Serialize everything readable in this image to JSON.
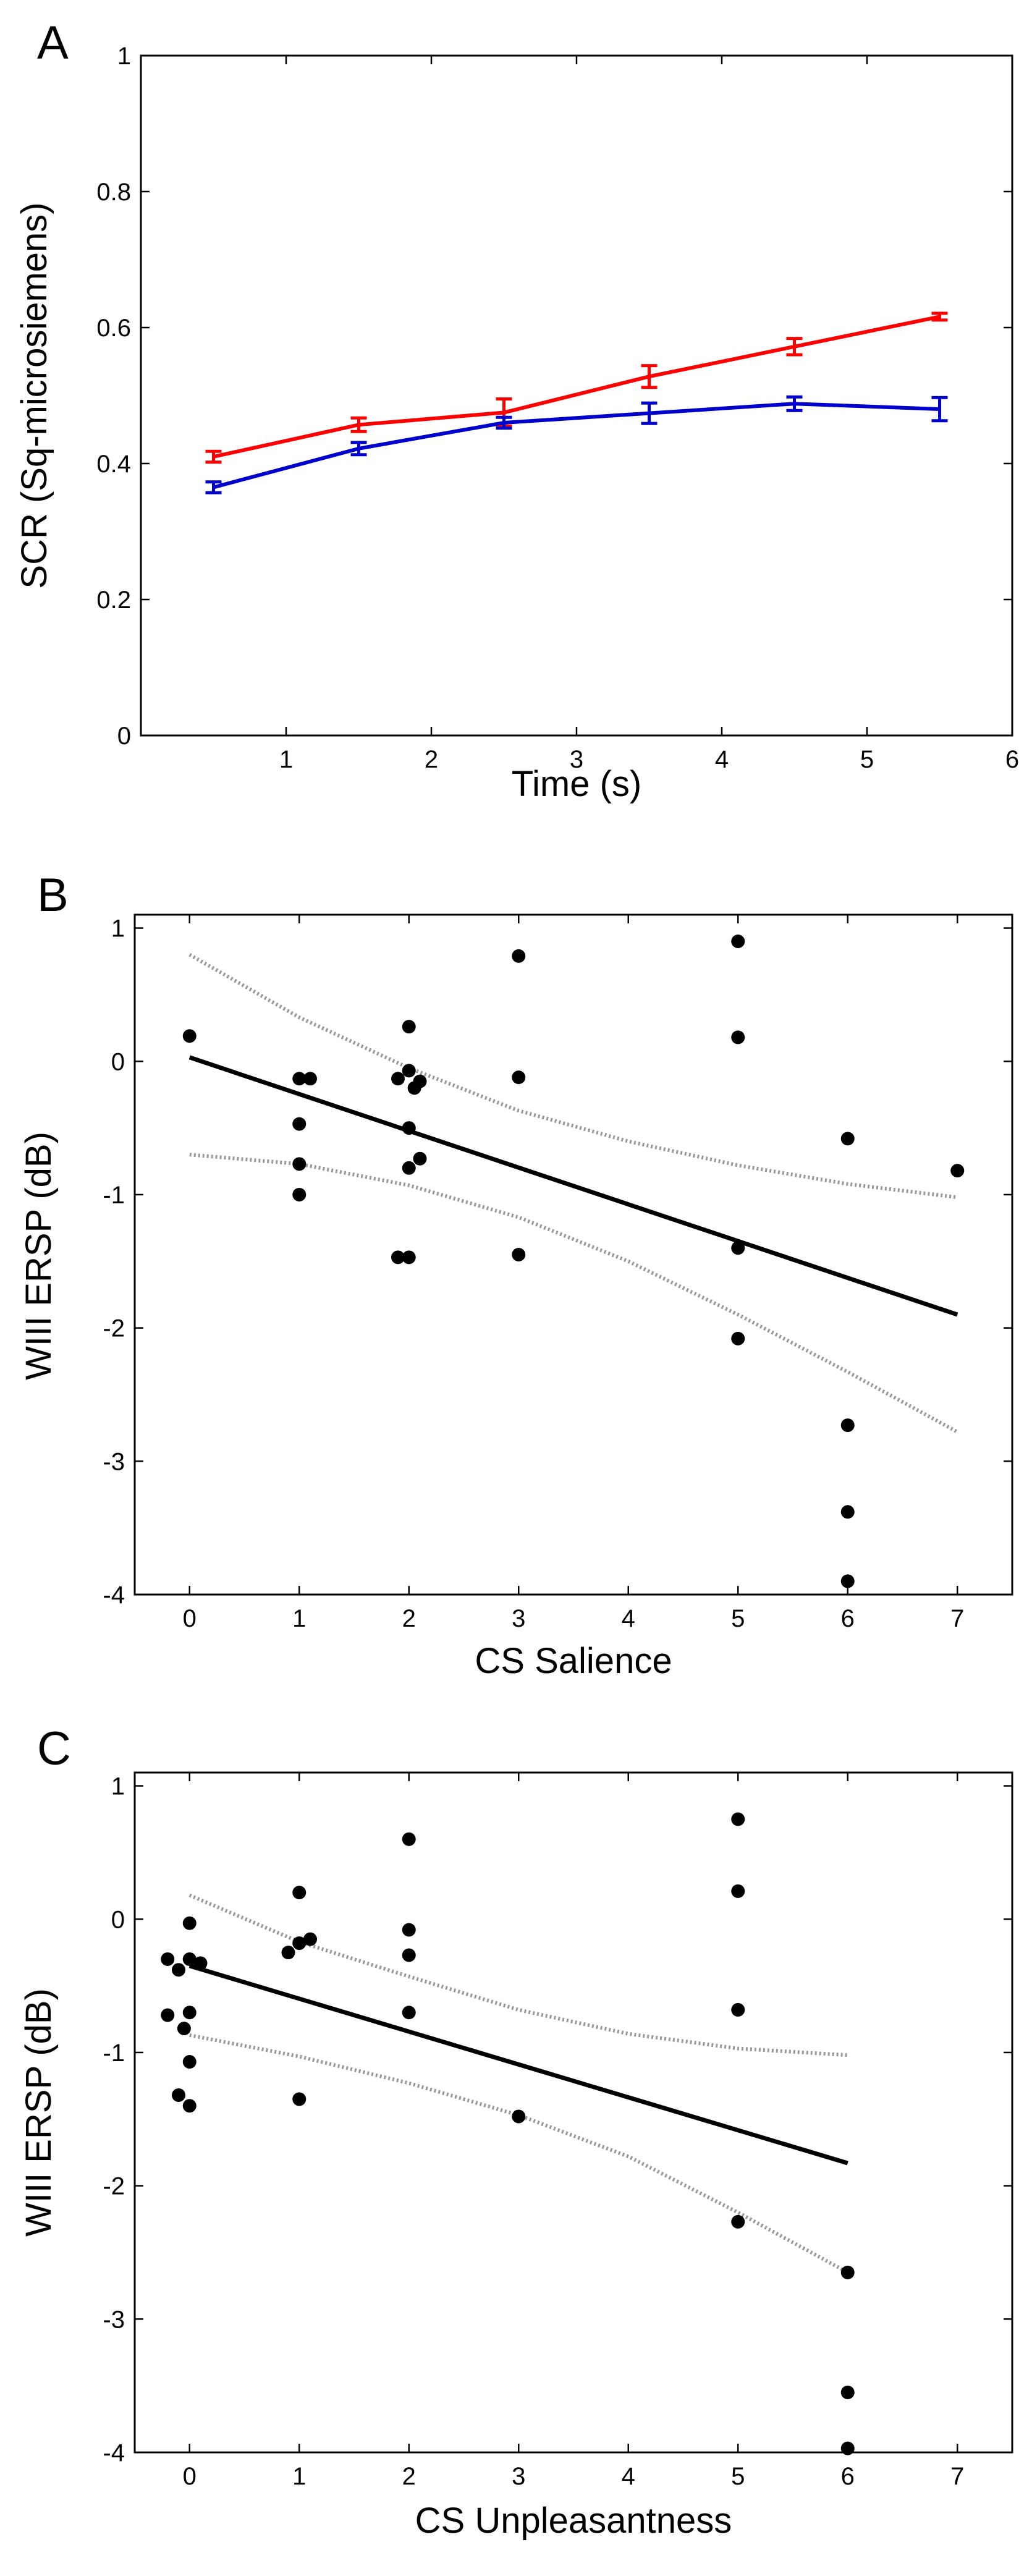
{
  "chart_data": [
    {
      "panel": "A",
      "type": "line",
      "xlabel": "Time (s)",
      "ylabel": "SCR (Sq-microsiemens)",
      "xlim": [
        0,
        6
      ],
      "ylim": [
        0,
        1
      ],
      "xticks": [
        1,
        2,
        3,
        4,
        5,
        6
      ],
      "yticks": [
        0,
        0.2,
        0.4,
        0.6,
        0.8,
        1
      ],
      "xtick_labels": [
        "1",
        "2",
        "3",
        "4",
        "5",
        "6"
      ],
      "ytick_labels": [
        "0",
        "0.2",
        "0.4",
        "0.6",
        "0.8",
        "1"
      ],
      "series": [
        {
          "name": "red",
          "color": "#ff0000",
          "x": [
            0.5,
            1.5,
            2.5,
            3.5,
            4.5,
            5.5
          ],
          "values": [
            0.41,
            0.457,
            0.475,
            0.528,
            0.572,
            0.616
          ],
          "error": [
            0.008,
            0.01,
            0.02,
            0.016,
            0.012,
            0.005
          ]
        },
        {
          "name": "blue",
          "color": "#0000cc",
          "x": [
            0.5,
            1.5,
            2.5,
            3.5,
            4.5,
            5.5
          ],
          "values": [
            0.365,
            0.422,
            0.46,
            0.474,
            0.488,
            0.48
          ],
          "error": [
            0.008,
            0.009,
            0.008,
            0.015,
            0.01,
            0.017
          ]
        }
      ]
    },
    {
      "panel": "B",
      "type": "scatter",
      "xlabel": "CS Salience",
      "ylabel": "WIII ERSP (dB)",
      "xlim": [
        -0.5,
        7.5
      ],
      "ylim": [
        -4,
        1.1
      ],
      "xticks": [
        0,
        1,
        2,
        3,
        4,
        5,
        6,
        7
      ],
      "yticks": [
        -4,
        -3,
        -2,
        -1,
        0,
        1
      ],
      "xtick_labels": [
        "0",
        "1",
        "2",
        "3",
        "4",
        "5",
        "6",
        "7"
      ],
      "ytick_labels": [
        "-4",
        "-3",
        "-2",
        "-1",
        "0",
        "1"
      ],
      "points": [
        [
          0,
          0.19
        ],
        [
          1,
          -0.13
        ],
        [
          1.1,
          -0.13
        ],
        [
          1,
          -0.47
        ],
        [
          1,
          -0.77
        ],
        [
          1,
          -1.0
        ],
        [
          1.9,
          -0.13
        ],
        [
          2,
          0.26
        ],
        [
          2,
          -0.07
        ],
        [
          2.05,
          -0.2
        ],
        [
          2.1,
          -0.15
        ],
        [
          2,
          -0.5
        ],
        [
          2,
          -0.8
        ],
        [
          2.1,
          -0.73
        ],
        [
          1.9,
          -1.47
        ],
        [
          2,
          -1.47
        ],
        [
          3,
          0.79
        ],
        [
          3,
          -0.12
        ],
        [
          3,
          -1.45
        ],
        [
          5,
          0.9
        ],
        [
          5,
          0.18
        ],
        [
          5,
          -1.4
        ],
        [
          5,
          -2.08
        ],
        [
          6,
          -0.58
        ],
        [
          6,
          -2.73
        ],
        [
          6,
          -3.38
        ],
        [
          6,
          -3.9
        ],
        [
          7,
          -0.82
        ]
      ],
      "fit": {
        "x": [
          0,
          7
        ],
        "y": [
          0.03,
          -1.9
        ]
      },
      "ci_upper": {
        "x": [
          0,
          1,
          2,
          3,
          4,
          5,
          6,
          7
        ],
        "y": [
          0.8,
          0.33,
          -0.05,
          -0.37,
          -0.6,
          -0.78,
          -0.92,
          -1.02
        ]
      },
      "ci_lower": {
        "x": [
          0,
          1,
          2,
          3,
          4,
          5,
          6,
          7
        ],
        "y": [
          -0.7,
          -0.77,
          -0.93,
          -1.17,
          -1.5,
          -1.9,
          -2.33,
          -2.78
        ]
      }
    },
    {
      "panel": "C",
      "type": "scatter",
      "xlabel": "CS Unpleasantness",
      "ylabel": "WIII ERSP (dB)",
      "xlim": [
        -0.5,
        7.5
      ],
      "ylim": [
        -4,
        1.1
      ],
      "xticks": [
        0,
        1,
        2,
        3,
        4,
        5,
        6,
        7
      ],
      "yticks": [
        -4,
        -3,
        -2,
        -1,
        0,
        1
      ],
      "xtick_labels": [
        "0",
        "1",
        "2",
        "3",
        "4",
        "5",
        "6",
        "7"
      ],
      "ytick_labels": [
        "-4",
        "-3",
        "-2",
        "-1",
        "0",
        "1"
      ],
      "points": [
        [
          -0.2,
          -0.3
        ],
        [
          -0.1,
          -0.38
        ],
        [
          0,
          -0.03
        ],
        [
          0,
          -0.3
        ],
        [
          0.1,
          -0.33
        ],
        [
          -0.2,
          -0.72
        ],
        [
          0,
          -0.7
        ],
        [
          -0.05,
          -0.82
        ],
        [
          0,
          -1.07
        ],
        [
          -0.1,
          -1.32
        ],
        [
          0,
          -1.4
        ],
        [
          1,
          0.2
        ],
        [
          0.9,
          -0.25
        ],
        [
          1,
          -0.18
        ],
        [
          1.1,
          -0.15
        ],
        [
          1,
          -1.35
        ],
        [
          2,
          0.6
        ],
        [
          2,
          -0.08
        ],
        [
          2,
          -0.27
        ],
        [
          2,
          -0.7
        ],
        [
          3,
          -1.48
        ],
        [
          5,
          0.75
        ],
        [
          5,
          0.21
        ],
        [
          5,
          -0.68
        ],
        [
          5,
          -2.27
        ],
        [
          6,
          -2.65
        ],
        [
          6,
          -3.55
        ],
        [
          6,
          -3.97
        ]
      ],
      "fit": {
        "x": [
          0,
          6
        ],
        "y": [
          -0.35,
          -1.83
        ]
      },
      "ci_upper": {
        "x": [
          0,
          1,
          2,
          3,
          4,
          5,
          6
        ],
        "y": [
          0.18,
          -0.17,
          -0.43,
          -0.68,
          -0.86,
          -0.97,
          -1.02
        ]
      },
      "ci_lower": {
        "x": [
          0,
          1,
          2,
          3,
          4,
          5,
          6
        ],
        "y": [
          -0.87,
          -1.03,
          -1.23,
          -1.47,
          -1.78,
          -2.2,
          -2.65
        ]
      }
    }
  ]
}
